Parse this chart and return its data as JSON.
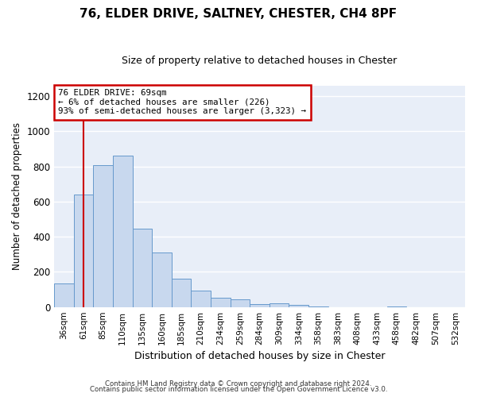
{
  "title": "76, ELDER DRIVE, SALTNEY, CHESTER, CH4 8PF",
  "subtitle": "Size of property relative to detached houses in Chester",
  "xlabel": "Distribution of detached houses by size in Chester",
  "ylabel": "Number of detached properties",
  "bar_labels": [
    "36sqm",
    "61sqm",
    "85sqm",
    "110sqm",
    "135sqm",
    "160sqm",
    "185sqm",
    "210sqm",
    "234sqm",
    "259sqm",
    "284sqm",
    "309sqm",
    "334sqm",
    "358sqm",
    "383sqm",
    "408sqm",
    "433sqm",
    "458sqm",
    "482sqm",
    "507sqm",
    "532sqm"
  ],
  "bar_values": [
    135,
    640,
    805,
    860,
    445,
    310,
    160,
    95,
    52,
    42,
    15,
    22,
    12,
    5,
    0,
    0,
    0,
    5,
    0,
    0,
    0
  ],
  "bar_color": "#c8d8ee",
  "bar_edge_color": "#6699cc",
  "ylim": [
    0,
    1260
  ],
  "yticks": [
    0,
    200,
    400,
    600,
    800,
    1000,
    1200
  ],
  "vline_x_index": 1,
  "vline_color": "#cc0000",
  "annotation_title": "76 ELDER DRIVE: 69sqm",
  "annotation_line1": "← 6% of detached houses are smaller (226)",
  "annotation_line2": "93% of semi-detached houses are larger (3,323) →",
  "annotation_box_facecolor": "#ffffff",
  "annotation_box_edgecolor": "#cc0000",
  "footer1": "Contains HM Land Registry data © Crown copyright and database right 2024.",
  "footer2": "Contains public sector information licensed under the Open Government Licence v3.0.",
  "fig_bg_color": "#ffffff",
  "plot_bg_color": "#e8eef8",
  "grid_color": "#ffffff",
  "title_fontsize": 11,
  "subtitle_fontsize": 9
}
